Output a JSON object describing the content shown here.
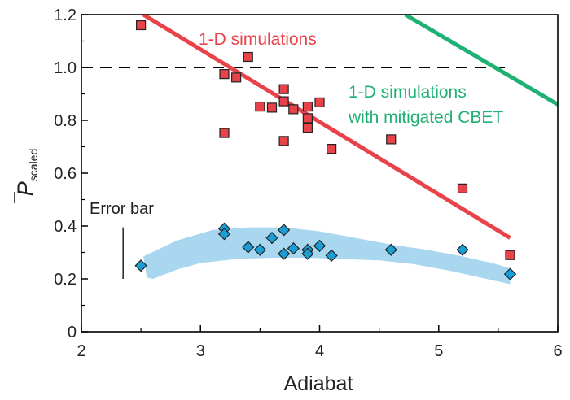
{
  "chart_data": {
    "type": "scatter",
    "xlabel": "Adiabat",
    "ylabel_main": "P",
    "ylabel_sub": "scaled",
    "xlim": [
      2,
      6
    ],
    "ylim": [
      0,
      1.2
    ],
    "x_ticks": [
      2,
      3,
      4,
      5,
      6
    ],
    "x_tick_labels": [
      "2",
      "3",
      "4",
      "5",
      "6"
    ],
    "y_ticks": [
      0,
      0.2,
      0.4,
      0.6,
      0.8,
      1.0,
      1.2
    ],
    "y_tick_labels": [
      "0",
      "0.2",
      "0.4",
      "0.6",
      "0.8",
      "1.0",
      "1.2"
    ],
    "reference_line": {
      "y": 1.0,
      "style": "dashed",
      "color": "#000000"
    },
    "annotations": {
      "red_line_label": "1-D simulations",
      "green_line_label_1": "1-D simulations",
      "green_line_label_2": "with mitigated CBET",
      "error_bar_label": "Error bar"
    },
    "error_bar": {
      "x": 2.35,
      "y_low": 0.2,
      "y_high": 0.395
    },
    "lines": [
      {
        "color": "#e8434a",
        "points": [
          [
            2.52,
            1.2
          ],
          [
            5.6,
            0.355
          ]
        ]
      },
      {
        "color": "#1fb174",
        "points": [
          [
            4.72,
            1.2
          ],
          [
            6.0,
            0.86
          ]
        ]
      }
    ],
    "band": {
      "color": "#a9d7f0",
      "upper": [
        [
          2.52,
          0.285
        ],
        [
          2.8,
          0.345
        ],
        [
          3.1,
          0.385
        ],
        [
          3.4,
          0.395
        ],
        [
          3.7,
          0.395
        ],
        [
          4.0,
          0.38
        ],
        [
          4.3,
          0.355
        ],
        [
          4.6,
          0.33
        ],
        [
          4.9,
          0.31
        ],
        [
          5.2,
          0.285
        ],
        [
          5.45,
          0.26
        ],
        [
          5.6,
          0.24
        ]
      ],
      "lower": [
        [
          5.6,
          0.18
        ],
        [
          5.4,
          0.2
        ],
        [
          5.1,
          0.23
        ],
        [
          4.8,
          0.255
        ],
        [
          4.5,
          0.27
        ],
        [
          4.2,
          0.275
        ],
        [
          3.9,
          0.28
        ],
        [
          3.6,
          0.28
        ],
        [
          3.3,
          0.275
        ],
        [
          3.0,
          0.26
        ],
        [
          2.8,
          0.235
        ],
        [
          2.6,
          0.2
        ],
        [
          2.55,
          0.205
        ]
      ]
    },
    "series": [
      {
        "marker": "square",
        "color": "#e8434a",
        "points": [
          [
            2.5,
            1.16
          ],
          [
            3.2,
            0.975
          ],
          [
            3.2,
            0.752
          ],
          [
            3.3,
            0.962
          ],
          [
            3.4,
            1.04
          ],
          [
            3.5,
            0.852
          ],
          [
            3.6,
            0.848
          ],
          [
            3.7,
            0.918
          ],
          [
            3.7,
            0.872
          ],
          [
            3.7,
            0.722
          ],
          [
            3.78,
            0.842
          ],
          [
            3.9,
            0.852
          ],
          [
            3.9,
            0.808
          ],
          [
            3.9,
            0.772
          ],
          [
            4.0,
            0.868
          ],
          [
            4.1,
            0.692
          ],
          [
            4.6,
            0.728
          ],
          [
            5.2,
            0.542
          ],
          [
            5.6,
            0.29
          ]
        ]
      },
      {
        "marker": "diamond",
        "color": "#1a9ed6",
        "points": [
          [
            2.5,
            0.25
          ],
          [
            3.2,
            0.39
          ],
          [
            3.2,
            0.37
          ],
          [
            3.4,
            0.32
          ],
          [
            3.5,
            0.31
          ],
          [
            3.6,
            0.355
          ],
          [
            3.7,
            0.385
          ],
          [
            3.7,
            0.295
          ],
          [
            3.78,
            0.315
          ],
          [
            3.9,
            0.31
          ],
          [
            3.9,
            0.295
          ],
          [
            4.0,
            0.325
          ],
          [
            4.1,
            0.288
          ],
          [
            4.6,
            0.31
          ],
          [
            5.2,
            0.31
          ],
          [
            5.6,
            0.218
          ]
        ]
      }
    ]
  }
}
